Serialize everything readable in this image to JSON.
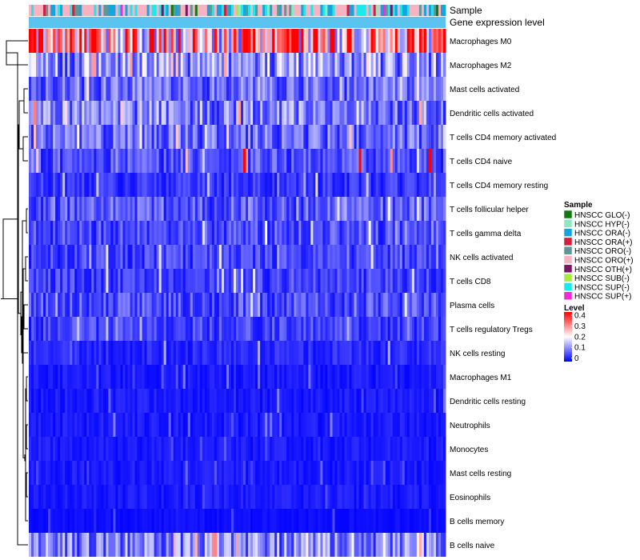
{
  "chart_data": {
    "type": "heatmap",
    "title": "",
    "annotation_tracks": [
      "Sample",
      "Gene expression level"
    ],
    "rows": [
      "Macrophages M0",
      "Macrophages M2",
      "Mast cells activated",
      "Dendritic cells activated",
      "T cells CD4 memory activated",
      "T cells CD4 naive",
      "T cells CD4 memory resting",
      "T cells follicular helper",
      "T cells gamma delta",
      "NK cells activated",
      "T cells CD8",
      "Plasma cells",
      "T cells regulatory  Tregs",
      "NK cells resting",
      "Macrophages M1",
      "Dendritic cells resting",
      "Neutrophils",
      "Monocytes",
      "Mast cells resting",
      "Eosinophils",
      "B cells memory",
      "B cells naive"
    ],
    "row_mean_level": [
      0.27,
      0.12,
      0.08,
      0.1,
      0.08,
      0.06,
      0.04,
      0.07,
      0.06,
      0.05,
      0.05,
      0.06,
      0.05,
      0.03,
      0.02,
      0.02,
      0.02,
      0.02,
      0.02,
      0.02,
      0.01,
      0.1
    ],
    "row_max_level": [
      0.42,
      0.28,
      0.22,
      0.3,
      0.25,
      0.42,
      0.18,
      0.2,
      0.2,
      0.18,
      0.18,
      0.18,
      0.16,
      0.14,
      0.1,
      0.1,
      0.1,
      0.08,
      0.08,
      0.06,
      0.06,
      0.3
    ],
    "sample_count": 173,
    "legend_sample": {
      "title": "Sample",
      "items": [
        {
          "label": "HNSCC GLO(-)",
          "color": "#117a11"
        },
        {
          "label": "HNSCC HYP(-)",
          "color": "#8fe8c4"
        },
        {
          "label": "HNSCC ORA(-)",
          "color": "#16a4dc"
        },
        {
          "label": "HNSCC ORA(+)",
          "color": "#d11f3d"
        },
        {
          "label": "HNSCC ORO(-)",
          "color": "#5e9896"
        },
        {
          "label": "HNSCC ORO(+)",
          "color": "#f8b3c3"
        },
        {
          "label": "HNSCC OTH(+)",
          "color": "#7b1463"
        },
        {
          "label": "HNSCC SUB(-)",
          "color": "#a6ec3a"
        },
        {
          "label": "HNSCC SUP(-)",
          "color": "#1ce9ec"
        },
        {
          "label": "HNSCC SUP(+)",
          "color": "#f02cd8"
        }
      ]
    },
    "legend_level": {
      "title": "Level",
      "ticks": [
        "0.4",
        "0.3",
        "0.2",
        "0.1",
        "0"
      ],
      "range": [
        0,
        0.4
      ],
      "colors": {
        "low": "#0000ff",
        "mid": "#ffffff",
        "high": "#ff0000"
      }
    },
    "gene_level_bar_color": "#5bc3ef"
  }
}
